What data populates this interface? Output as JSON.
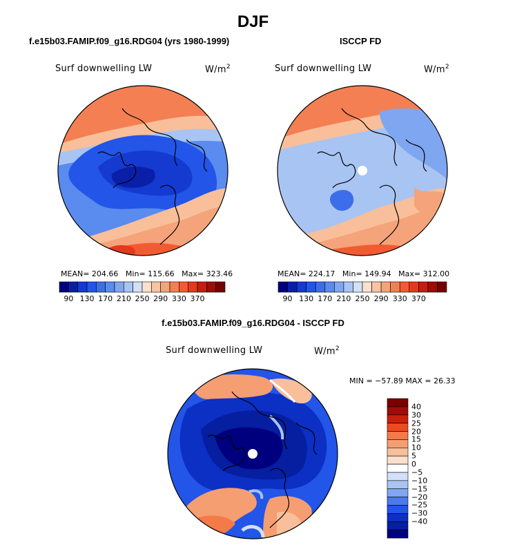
{
  "figure": {
    "title": "DJF"
  },
  "panels": [
    {
      "title": "f.e15b03.FAMIP.f09_g16.RDG04 (yrs 1980-1999)",
      "variable": "Surf downwelling LW",
      "units": "W/m",
      "units_sup": "2",
      "stats": {
        "mean_label": "MEAN=",
        "mean": "204.66",
        "min_label": "Min=",
        "min": "115.66",
        "max_label": "Max=",
        "max": "323.46"
      }
    },
    {
      "title": "ISCCP FD",
      "variable": "Surf downwelling LW",
      "units": "W/m",
      "units_sup": "2",
      "stats": {
        "mean_label": "MEAN=",
        "mean": "224.17",
        "min_label": "Min=",
        "min": "149.94",
        "max_label": "Max=",
        "max": "312.00"
      }
    },
    {
      "title": "f.e15b03.FAMIP.f09_g16.RDG04 - ISCCP FD",
      "variable": "Surf downwelling LW",
      "units": "W/m",
      "units_sup": "2",
      "stats_text": "MIN = −57.89 MAX =   26.33"
    }
  ],
  "colorbar_abs": {
    "ticks": [
      "90",
      "130",
      "170",
      "210",
      "250",
      "290",
      "330",
      "370"
    ],
    "colors": [
      "#00007f",
      "#0a1fa8",
      "#143ad0",
      "#2255e8",
      "#3d6ee9",
      "#5a8bee",
      "#7fa6f0",
      "#a8c4f3",
      "#d2e0f8",
      "#fde0cc",
      "#f9c4a4",
      "#f5a37a",
      "#f47f52",
      "#f25b32",
      "#e23a1c",
      "#c21f10",
      "#9e0c08",
      "#7a0000"
    ]
  },
  "colorbar_diff": {
    "ticks": [
      "40",
      "30",
      "25",
      "20",
      "15",
      "10",
      "5",
      "0",
      "−5",
      "−10",
      "−15",
      "−20",
      "−25",
      "−30",
      "−40"
    ],
    "colors": [
      "#7a0000",
      "#a00c08",
      "#c8200c",
      "#ee4a20",
      "#f47a48",
      "#f59e72",
      "#f8bf9a",
      "#fde0cc",
      "#ffffff",
      "#d2e0f8",
      "#a8c4f3",
      "#7fa6f0",
      "#4a7aec",
      "#2255e8",
      "#0c2fc4",
      "#061ea0",
      "#00007f"
    ]
  }
}
